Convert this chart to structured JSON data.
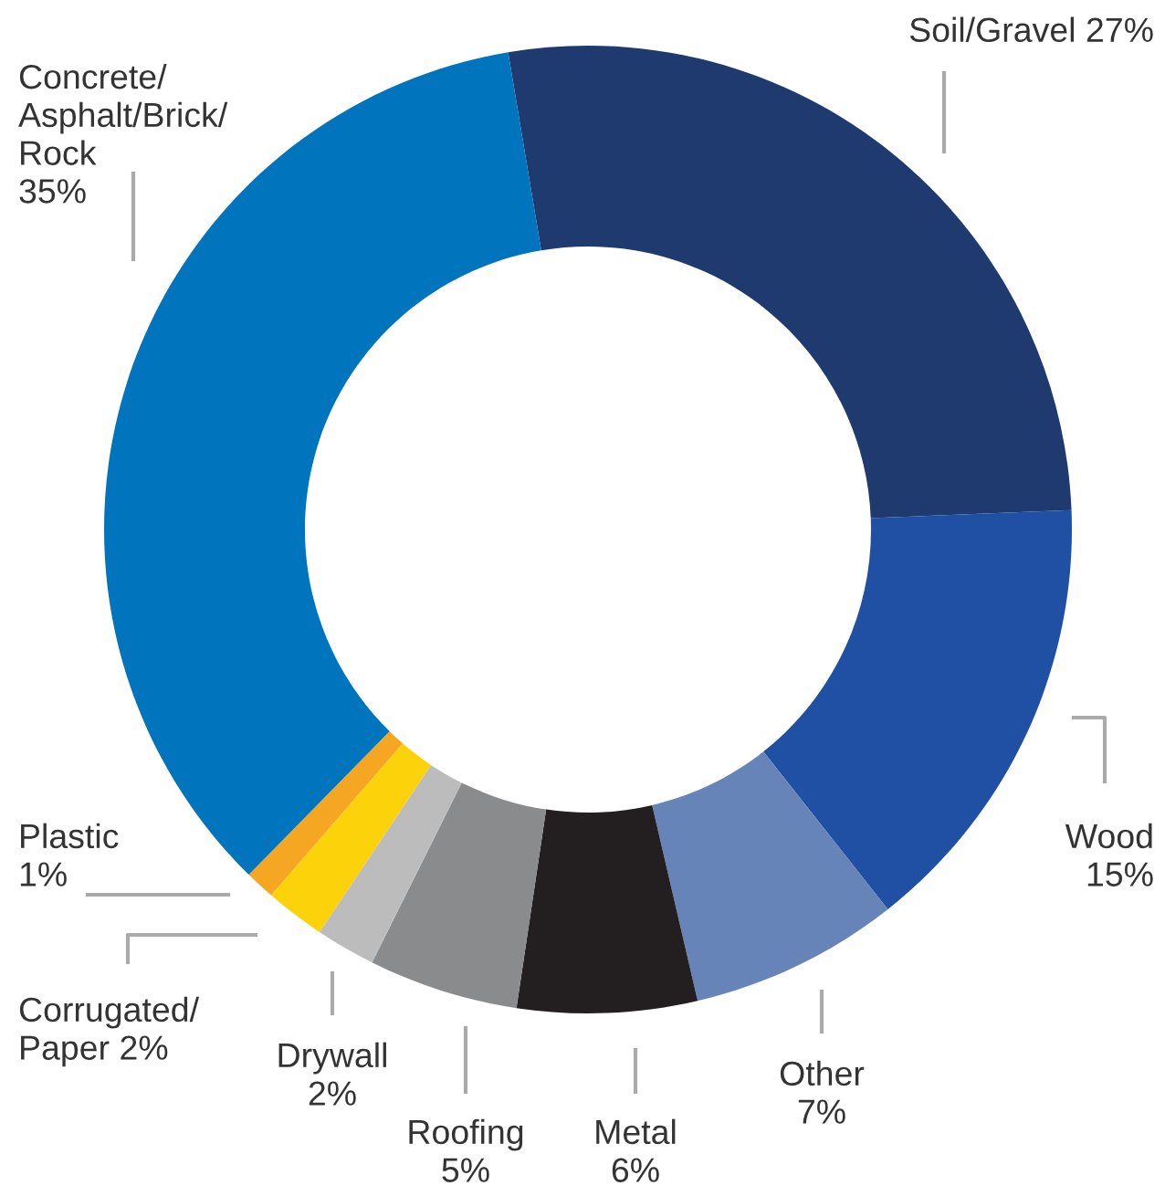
{
  "chart_data": {
    "type": "donut",
    "categories": [
      "Soil/Gravel",
      "Wood",
      "Other",
      "Metal",
      "Roofing",
      "Drywall",
      "Corrugated/\nPaper",
      "Plastic",
      "Concrete/\nAsphalt/Brick/\nRock"
    ],
    "values": [
      27,
      15,
      7,
      6,
      5,
      2,
      2,
      1,
      35
    ],
    "colors": [
      "#1f3a6e",
      "#1f50a4",
      "#6784b9",
      "#231f20",
      "#8a8b8d",
      "#bcbcbc",
      "#fcd20a",
      "#f5a623",
      "#0074bc"
    ],
    "value_labels": [
      "27%",
      "15%",
      "7%",
      "6%",
      "5%",
      "2%",
      "2%",
      "1%",
      "35%"
    ]
  }
}
